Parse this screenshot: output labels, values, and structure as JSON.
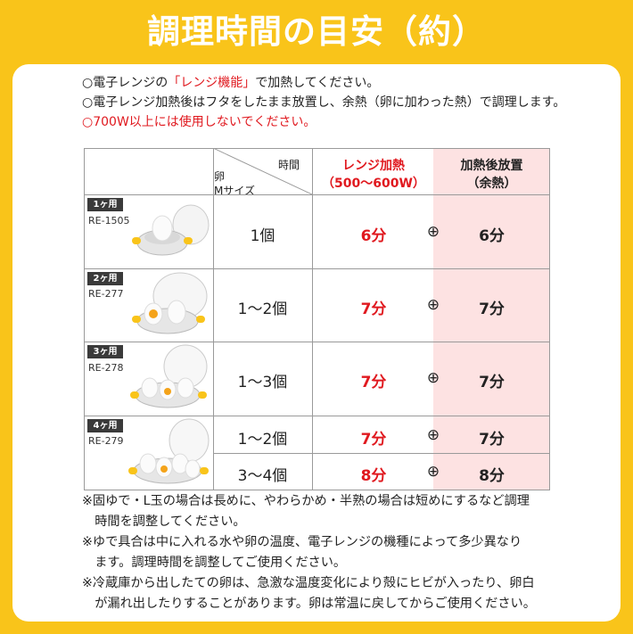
{
  "title": "調理時間の目安（約）",
  "notes_top": [
    {
      "pre": "○電子レンジの",
      "em": "「レンジ機能」",
      "post": "で加熱してください。"
    },
    {
      "text": "○電子レンジ加熱後はフタをしたまま放置し、余熱（卵に加わった熱）で調理します。"
    },
    {
      "text": "○700W以上には使用しないでください。"
    }
  ],
  "header": {
    "time": "時間",
    "egg_line1": "卵",
    "egg_line2": "Mサイズ",
    "heat_line1": "レンジ加熱",
    "heat_line2": "（500～600W）",
    "rest_line1": "加熱後放置",
    "rest_line2": "（余熱）"
  },
  "products": [
    {
      "badge": "1ヶ用",
      "model": "RE-1505",
      "icon": "egg-cooker-1-image"
    },
    {
      "badge": "2ヶ用",
      "model": "RE-277",
      "icon": "egg-cooker-2-image"
    },
    {
      "badge": "3ヶ用",
      "model": "RE-278",
      "icon": "egg-cooker-3-image"
    },
    {
      "badge": "4ヶ用",
      "model": "RE-279",
      "icon": "egg-cooker-4-image"
    }
  ],
  "rows": [
    {
      "qty": "1個",
      "heat": "6分",
      "plus": "⊕",
      "rest": "6分"
    },
    {
      "qty": "1～2個",
      "heat": "7分",
      "plus": "⊕",
      "rest": "7分"
    },
    {
      "qty": "1～3個",
      "heat": "7分",
      "plus": "⊕",
      "rest": "7分"
    },
    {
      "qty": "1～2個",
      "heat": "7分",
      "plus": "⊕",
      "rest": "7分"
    },
    {
      "qty": "3～4個",
      "heat": "8分",
      "plus": "⊕",
      "rest": "8分"
    }
  ],
  "notes_bottom": [
    "※固ゆで・L玉の場合は長めに、やわらかめ・半熟の場合は短めにするなど調理",
    "　時間を調整してください。",
    "※ゆで具合は中に入れる水や卵の温度、電子レンジの機種によって多少異なり",
    "　ます。調理時間を調整してご使用ください。",
    "※冷蔵庫から出したての卵は、急激な温度変化により殻にヒビが入ったり、卵白",
    "　が漏れ出したりすることがあります。卵は常温に戻してからご使用ください。"
  ],
  "colors": {
    "frame": "#f9c41a",
    "accent_red": "#e0191f",
    "pink_column": "#fde2e2"
  }
}
